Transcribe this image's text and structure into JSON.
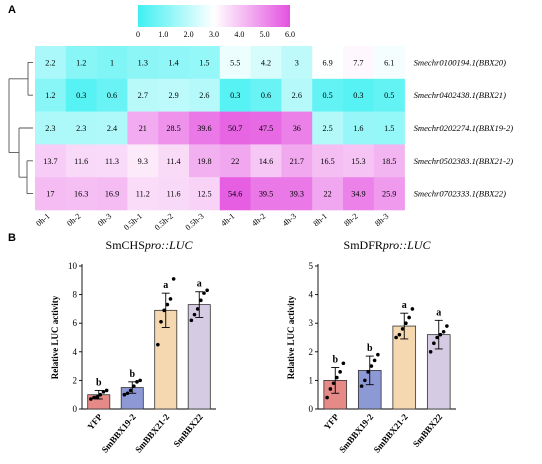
{
  "panels": {
    "a": "A",
    "b": "B"
  },
  "chart_data": [
    {
      "type": "heatmap",
      "colorbar": {
        "ticks": [
          "0",
          "1.0",
          "2.0",
          "3.0",
          "4.0",
          "5.0",
          "6.0"
        ],
        "range": [
          0,
          6
        ],
        "low_color": "#3ff0f2",
        "mid_color": "#ffffff",
        "high_color": "#e452e0"
      },
      "columns": [
        "0h-1",
        "0h-2",
        "0h-3",
        "0.5h-1",
        "0.5h-2",
        "0.5h-3",
        "4h-1",
        "4h-2",
        "4h-3",
        "8h-1",
        "8h-2",
        "8h-3"
      ],
      "rows": [
        {
          "label": "Smechr0100194.1(BBX20)",
          "values": [
            2.2,
            1.2,
            1.0,
            1.3,
            1.4,
            1.5,
            5.5,
            4.2,
            3.0,
            6.9,
            7.7,
            6.1
          ]
        },
        {
          "label": "Smechr0402438.1(BBX21)",
          "values": [
            1.2,
            0.3,
            0.6,
            2.7,
            2.9,
            2.6,
            0.3,
            0.6,
            2.6,
            0.5,
            0.3,
            0.5
          ]
        },
        {
          "label": "Smechr0202274.1(BBX19-2)",
          "values": [
            2.3,
            2.3,
            2.4,
            21.0,
            28.5,
            39.6,
            50.7,
            47.5,
            36.0,
            2.5,
            1.6,
            1.5
          ]
        },
        {
          "label": "Smechr0502383.1(BBX21-2)",
          "values": [
            13.7,
            11.6,
            11.3,
            9.3,
            11.4,
            19.8,
            22.0,
            14.6,
            21.7,
            16.5,
            15.3,
            18.5
          ]
        },
        {
          "label": "Smechr0702333.1(BBX22)",
          "values": [
            17.0,
            16.3,
            16.9,
            11.2,
            11.6,
            12.5,
            54.6,
            39.5,
            39.3,
            22.0,
            34.9,
            25.9
          ]
        }
      ],
      "dendrogram": "hierarchical clustering of rows"
    },
    {
      "type": "bar",
      "title_prefix": "SmCHS",
      "title_italic": "pro::LUC",
      "ylabel": "Relative LUC activity",
      "ylim": [
        0,
        10
      ],
      "yticks": [
        "0",
        "2",
        "4",
        "6",
        "8",
        "10"
      ],
      "categories": [
        "YFP",
        "SmBBX19-2",
        "SmBBX21-2",
        "SmBBX22"
      ],
      "values": [
        1.0,
        1.5,
        6.9,
        7.3
      ],
      "errors": [
        0.3,
        0.4,
        1.2,
        0.9
      ],
      "letters": [
        "b",
        "b",
        "a",
        "a"
      ],
      "colors": [
        "#e58a86",
        "#8c99d5",
        "#f5d8af",
        "#d5cbe3"
      ],
      "points": [
        [
          0.7,
          0.8,
          0.85,
          1.0,
          1.2,
          1.3
        ],
        [
          1.0,
          1.1,
          1.3,
          1.6,
          1.9,
          2.0
        ],
        [
          4.5,
          6.1,
          6.9,
          7.3,
          7.7,
          9.1
        ],
        [
          6.2,
          6.6,
          7.0,
          7.6,
          8.1,
          8.3
        ]
      ]
    },
    {
      "type": "bar",
      "title_prefix": "SmDFR",
      "title_italic": "pro::LUC",
      "ylabel": "Relative LUC activity",
      "ylim": [
        0,
        5
      ],
      "yticks": [
        "0",
        "1",
        "2",
        "3",
        "4",
        "5"
      ],
      "categories": [
        "YFP",
        "SmBBX19-2",
        "SmBBX21-2",
        "SmBBX22"
      ],
      "values": [
        1.0,
        1.35,
        2.9,
        2.6
      ],
      "errors": [
        0.45,
        0.5,
        0.45,
        0.5
      ],
      "letters": [
        "b",
        "b",
        "a",
        "a"
      ],
      "colors": [
        "#e58a86",
        "#8c99d5",
        "#f5d8af",
        "#d5cbe3"
      ],
      "points": [
        [
          0.4,
          0.7,
          0.9,
          1.1,
          1.3,
          1.6
        ],
        [
          0.8,
          1.0,
          1.3,
          1.5,
          1.7,
          1.9
        ],
        [
          2.5,
          2.6,
          2.8,
          3.0,
          3.2,
          3.5
        ],
        [
          2.0,
          2.3,
          2.5,
          2.6,
          2.7,
          2.9
        ]
      ]
    }
  ]
}
